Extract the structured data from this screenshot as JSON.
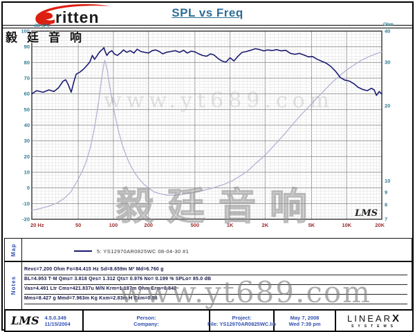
{
  "header": {
    "brand": "ritten",
    "brand_cjk": "毅廷音响",
    "title": "SPL vs Freq"
  },
  "watermarks": {
    "url": "www.yt689.com",
    "cjk": "毅廷音响"
  },
  "chart_data": {
    "type": "line",
    "title": "SPL vs Freq",
    "grid": true,
    "lms_mark": "LMS",
    "x_axis": {
      "scale": "log",
      "min": 20,
      "max": 20000,
      "tick_values": [
        20,
        50,
        100,
        200,
        500,
        1000,
        2000,
        5000,
        10000,
        20000
      ],
      "tick_labels": [
        "20 Hz",
        "50",
        "100",
        "200",
        "500",
        "1K",
        "2K",
        "5K",
        "10K",
        "20K"
      ],
      "label_color": "#9a2c2c"
    },
    "y_left": {
      "label": "dB SPL",
      "min": -20,
      "max": 100,
      "tick_step": 10,
      "tick_values": [
        100,
        90,
        80,
        70,
        60,
        50,
        40,
        30,
        20,
        10,
        0,
        -10,
        -20
      ],
      "label_color": "#2e7d96"
    },
    "y_right": {
      "label": "Ohm",
      "scale": "log",
      "min": 7,
      "max": 40,
      "tick_values": [
        40,
        30,
        20,
        10,
        9,
        8,
        7
      ],
      "label_color": "#2e7d96"
    },
    "legend": "5: YS12970AR0825WC   08-04-30   #1",
    "series": [
      {
        "name": "Impedance",
        "axis": "right",
        "color": "#b2b2d4",
        "width": 1.3,
        "points": [
          [
            20,
            7.6
          ],
          [
            24,
            7.75
          ],
          [
            28,
            7.9
          ],
          [
            33,
            8.15
          ],
          [
            38,
            8.5
          ],
          [
            43,
            9.0
          ],
          [
            48,
            9.8
          ],
          [
            53,
            10.7
          ],
          [
            58,
            11.8
          ],
          [
            63,
            13.4
          ],
          [
            68,
            15.8
          ],
          [
            72,
            18.5
          ],
          [
            76,
            22
          ],
          [
            80,
            26.5
          ],
          [
            83,
            29.5
          ],
          [
            84.4,
            30.5
          ],
          [
            86,
            29.8
          ],
          [
            89,
            27.5
          ],
          [
            93,
            24
          ],
          [
            98,
            21
          ],
          [
            104,
            18
          ],
          [
            111,
            15.8
          ],
          [
            119,
            14
          ],
          [
            128,
            12.7
          ],
          [
            138,
            11.7
          ],
          [
            150,
            10.9
          ],
          [
            165,
            10.2
          ],
          [
            182,
            9.7
          ],
          [
            200,
            9.35
          ],
          [
            225,
            9.0
          ],
          [
            255,
            8.85
          ],
          [
            290,
            8.75
          ],
          [
            330,
            8.75
          ],
          [
            380,
            8.8
          ],
          [
            440,
            8.9
          ],
          [
            510,
            9.0
          ],
          [
            590,
            9.15
          ],
          [
            680,
            9.3
          ],
          [
            790,
            9.5
          ],
          [
            900,
            9.7
          ],
          [
            1050,
            10.0
          ],
          [
            1200,
            10.4
          ],
          [
            1400,
            10.9
          ],
          [
            1650,
            11.7
          ],
          [
            1900,
            12.4
          ],
          [
            2200,
            13.3
          ],
          [
            2600,
            14.5
          ],
          [
            3000,
            15.6
          ],
          [
            3500,
            17
          ],
          [
            4100,
            18.5
          ],
          [
            4800,
            20
          ],
          [
            5600,
            21.6
          ],
          [
            6500,
            23.2
          ],
          [
            7600,
            25
          ],
          [
            8800,
            26.6
          ],
          [
            10000,
            27.9
          ],
          [
            11500,
            29.2
          ],
          [
            13500,
            30.6
          ],
          [
            15500,
            31.6
          ],
          [
            17500,
            32.3
          ],
          [
            20000,
            33
          ]
        ]
      },
      {
        "name": "SPL",
        "axis": "left",
        "color": "#1a1a72",
        "width": 1.6,
        "points": [
          [
            20,
            60
          ],
          [
            22,
            62
          ],
          [
            25,
            61
          ],
          [
            28,
            62.5
          ],
          [
            31,
            61.5
          ],
          [
            34,
            64
          ],
          [
            37,
            68
          ],
          [
            39,
            69
          ],
          [
            41,
            66
          ],
          [
            43.5,
            61
          ],
          [
            46,
            68
          ],
          [
            48,
            72.5
          ],
          [
            52,
            74
          ],
          [
            56,
            76
          ],
          [
            60,
            78.5
          ],
          [
            63,
            80.5
          ],
          [
            66,
            84.5
          ],
          [
            69,
            82
          ],
          [
            72,
            84
          ],
          [
            75,
            86
          ],
          [
            78,
            87.5
          ],
          [
            81,
            88.5
          ],
          [
            83,
            89.5
          ],
          [
            85,
            87
          ],
          [
            88,
            84.5
          ],
          [
            92,
            86.5
          ],
          [
            97,
            87.5
          ],
          [
            102,
            85.5
          ],
          [
            108,
            84.5
          ],
          [
            115,
            86
          ],
          [
            122,
            88
          ],
          [
            130,
            86.5
          ],
          [
            140,
            87.5
          ],
          [
            150,
            86
          ],
          [
            160,
            88.5
          ],
          [
            172,
            87
          ],
          [
            185,
            86.5
          ],
          [
            200,
            86
          ],
          [
            215,
            87.5
          ],
          [
            230,
            88
          ],
          [
            248,
            87
          ],
          [
            265,
            85.5
          ],
          [
            285,
            86.5
          ],
          [
            310,
            87
          ],
          [
            340,
            87.5
          ],
          [
            370,
            86.5
          ],
          [
            400,
            87.8
          ],
          [
            430,
            86
          ],
          [
            465,
            87.2
          ],
          [
            500,
            86.8
          ],
          [
            540,
            85.5
          ],
          [
            580,
            84.5
          ],
          [
            630,
            84
          ],
          [
            680,
            85.5
          ],
          [
            730,
            84.8
          ],
          [
            790,
            82.5
          ],
          [
            850,
            81
          ],
          [
            920,
            80.2
          ],
          [
            1000,
            83
          ],
          [
            1080,
            81
          ],
          [
            1170,
            84
          ],
          [
            1270,
            86.5
          ],
          [
            1380,
            87
          ],
          [
            1500,
            87.8
          ],
          [
            1650,
            88.8
          ],
          [
            1800,
            88.2
          ],
          [
            1950,
            87.4
          ],
          [
            2100,
            88
          ],
          [
            2300,
            87.6
          ],
          [
            2500,
            88.2
          ],
          [
            2750,
            87.4
          ],
          [
            3000,
            87.8
          ],
          [
            3300,
            85.8
          ],
          [
            3600,
            85.2
          ],
          [
            3950,
            85.8
          ],
          [
            4300,
            84.8
          ],
          [
            4700,
            83.6
          ],
          [
            5100,
            83.8
          ],
          [
            5600,
            82
          ],
          [
            6100,
            80.8
          ],
          [
            6700,
            79.5
          ],
          [
            7300,
            77.5
          ],
          [
            8000,
            74.5
          ],
          [
            8800,
            70.5
          ],
          [
            9600,
            68.8
          ],
          [
            10500,
            68.2
          ],
          [
            11500,
            66.5
          ],
          [
            12500,
            64.2
          ],
          [
            13700,
            62.8
          ],
          [
            15000,
            62
          ],
          [
            16300,
            63.5
          ],
          [
            17200,
            62.5
          ],
          [
            18000,
            59
          ],
          [
            19000,
            61.5
          ],
          [
            20000,
            60
          ]
        ]
      }
    ]
  },
  "map_section": {
    "label": "Map",
    "legend_text": "5: YS12970AR0825WC   08-04-30   #1"
  },
  "notes_section": {
    "label": "Notes",
    "lines": [
      "Revc=7.200 Ohm  Fo=84.415 Hz  Sd=8.659m M²  Md=6.760 g",
      "BL=4.953 T·M  Qms= 3.818  Qes= 1.312  Qts= 0.976  No= 0.199 %  SPLo= 85.0 dB",
      "Vas=4.491 Ltr  Cms=421.837u M/N  Krm=1.187m Ohm  Erm=0.842",
      "Mms=8.427 g  Mmd=7.963m Kg  Kxm=2.83m H  Exm=0.86"
    ]
  },
  "footer": {
    "lms": "LMS",
    "version": "4.5.0.349",
    "version_date": "11/15/2004",
    "person_label": "Person:",
    "company_label": "Company:",
    "project_label": "Project:",
    "file_label": "File: YS12970AR0825WC.lib",
    "date": "May 7, 2008",
    "day_time": "Wed 7:39 pm",
    "brand_line1": "LINEAR",
    "brand_x": "X",
    "brand_line2": "SYSTEMS"
  },
  "colors": {
    "spl_curve": "#1a1a72",
    "impedance_curve": "#b2b2d4",
    "freq_labels": "#9a2c2c",
    "db_labels": "#2e7d96",
    "title": "#2e6e96",
    "footer_blue": "#3050b0",
    "logo_red": "#dd1f10"
  }
}
